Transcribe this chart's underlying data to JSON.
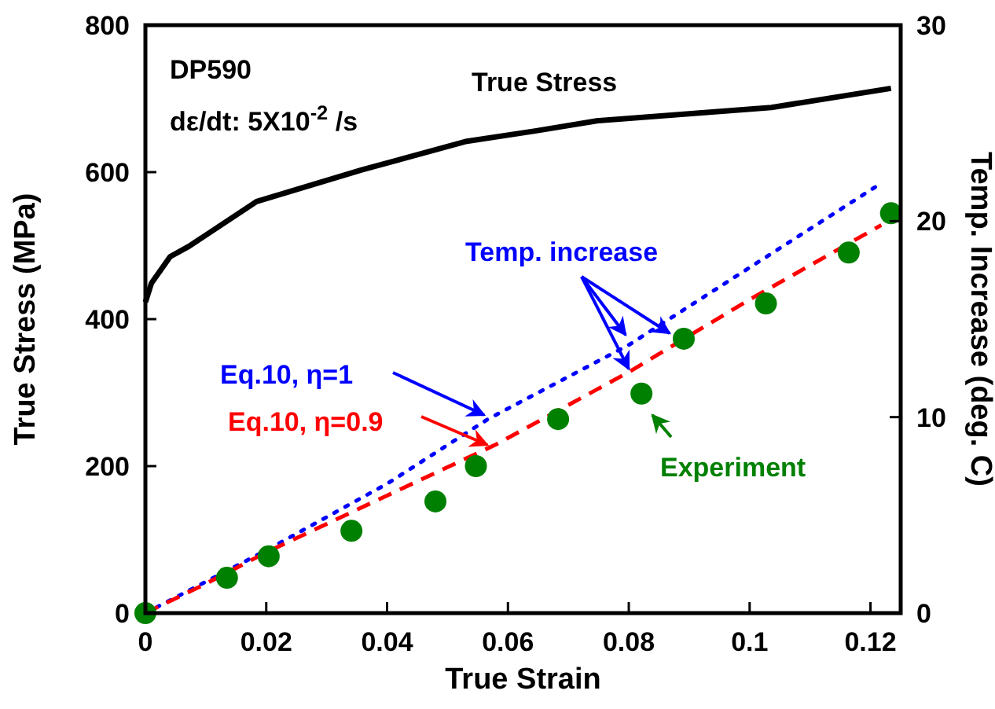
{
  "chart_data": {
    "type": "line",
    "xlabel": "True Strain",
    "ylabel": "True Stress (MPa)",
    "y2label": "Temp. Increase (deg. C)",
    "xlim": [
      0,
      0.125
    ],
    "xticks": [
      0,
      0.02,
      0.04,
      0.06,
      0.08,
      0.1,
      0.12
    ],
    "ylim": [
      0,
      800
    ],
    "yticks": [
      0,
      200,
      400,
      600,
      800
    ],
    "y2lim": [
      0,
      30
    ],
    "y2ticks": [
      0,
      10,
      20,
      30
    ],
    "grid": false,
    "annotations": [
      "DP590",
      "dε/dt:  5X10$^{-2}$ /s",
      {
        "text": "Temp. increase",
        "x": 0.08,
        "y": 328
      }
    ],
    "series": [
      {
        "name": "True Stress",
        "color": "#000000",
        "line_style": "solid",
        "x": [
          0,
          0.001,
          0.0041,
          0.0072,
          0.0184,
          0.0358,
          0.0532,
          0.0645,
          0.0749,
          0.1036,
          0.1234
        ],
        "values": [
          423,
          449,
          485,
          499,
          560,
          603,
          642,
          656,
          670,
          688,
          714
        ]
      },
      {
        "name": "Eq.10, η=1",
        "color": "#0000ff",
        "axis": "y2",
        "line_style": "dotted",
        "x": [
          0,
          0.02,
          0.04,
          0.0567,
          0.0801,
          0.1216
        ],
        "values": [
          0,
          3.2,
          6.6,
          9.9,
          13.7,
          21.9
        ]
      },
      {
        "name": "Eq.10, η=0.9",
        "color": "#ff0000",
        "axis": "y2",
        "line_style": "dashed",
        "x": [
          0,
          0.01,
          0.02,
          0.04,
          0.058,
          0.08,
          0.1,
          0.1218
        ],
        "values": [
          0,
          1.5,
          3.1,
          6.0,
          8.6,
          12.3,
          16.0,
          19.8
        ]
      },
      {
        "name": "Experiment",
        "color": "#008000",
        "type": "scatter",
        "axis": "y2",
        "marker": "circle",
        "x": [
          0,
          0.0135,
          0.0204,
          0.0341,
          0.048,
          0.0547,
          0.0683,
          0.0821,
          0.0891,
          0.1027,
          0.1164,
          0.1234
        ],
        "values": [
          0,
          1.8,
          2.9,
          4.2,
          5.7,
          7.5,
          9.9,
          11.2,
          14.0,
          15.8,
          18.4,
          20.4
        ]
      }
    ]
  }
}
